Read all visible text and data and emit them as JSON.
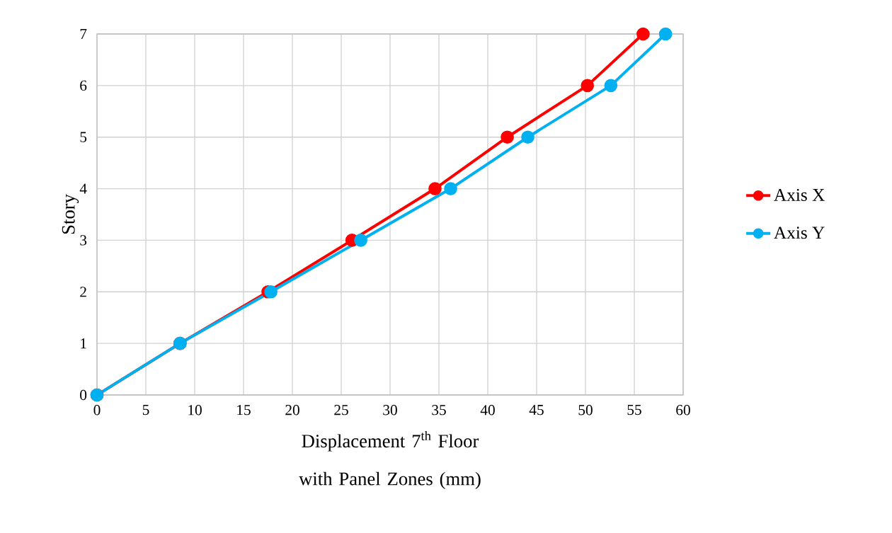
{
  "chart_data": {
    "type": "line",
    "xlabel": "Displacement 7$^{th}$ Floor with Panel Zones (mm)",
    "ylabel": "Story",
    "series": [
      {
        "name": "Axis X",
        "color": "#ff0000",
        "x": [
          0,
          8.5,
          17.5,
          26.1,
          34.6,
          42.0,
          50.2,
          55.9
        ],
        "values": [
          0,
          1,
          2,
          3,
          4,
          5,
          6,
          7
        ]
      },
      {
        "name": "Axis Y",
        "color": "#00b0f0",
        "x": [
          0,
          8.5,
          17.8,
          27.0,
          36.2,
          44.1,
          52.6,
          58.2
        ],
        "values": [
          0,
          1,
          2,
          3,
          4,
          5,
          6,
          7
        ]
      }
    ],
    "xlim": [
      0,
      60
    ],
    "ylim": [
      0,
      7
    ],
    "xticks": [
      0,
      5,
      10,
      15,
      20,
      25,
      30,
      35,
      40,
      45,
      50,
      55,
      60
    ],
    "yticks": [
      0,
      1,
      2,
      3,
      4,
      5,
      6,
      7
    ],
    "grid": true,
    "legend": "right",
    "marker": "circle",
    "line_style": "solid"
  }
}
